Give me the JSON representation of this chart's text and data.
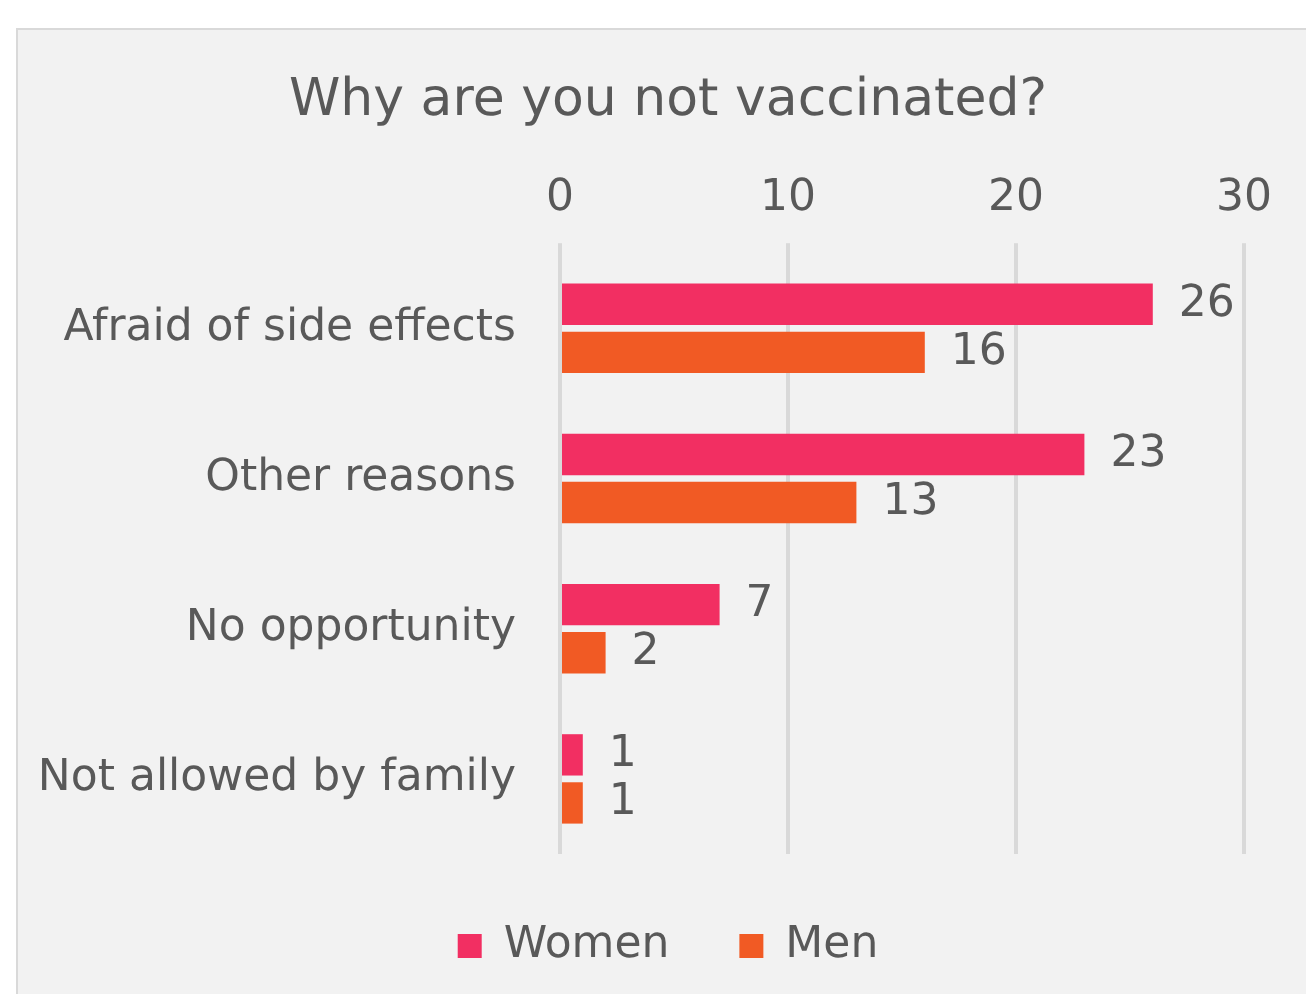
{
  "chart_data": {
    "type": "bar",
    "orientation": "horizontal",
    "title": "Why are you not vaccinated?",
    "categories": [
      "Afraid of side effects",
      "Other reasons",
      "No opportunity",
      "Not allowed by family"
    ],
    "series": [
      {
        "name": "Women",
        "color": "#f22f62",
        "values": [
          26,
          23,
          7,
          1
        ]
      },
      {
        "name": "Men",
        "color": "#f15a24",
        "values": [
          16,
          13,
          2,
          1
        ]
      }
    ],
    "xlim": [
      0,
      30
    ],
    "xticks": [
      0,
      10,
      20,
      30
    ],
    "grid": "x",
    "legend": "bottom",
    "data_labels": true
  }
}
